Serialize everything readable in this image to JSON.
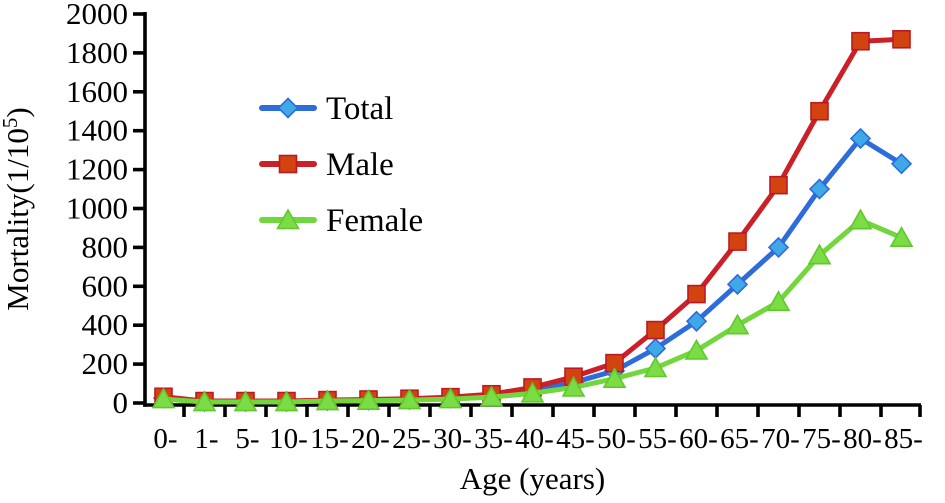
{
  "chart_data": {
    "type": "line",
    "title": "",
    "xlabel": "Age (years)",
    "ylabel": "Mortality(1/10⁵)",
    "ylim": [
      0,
      2000
    ],
    "ytick_step": 200,
    "ytick_labels": [
      "0",
      "200",
      "400",
      "600",
      "800",
      "1000",
      "1200",
      "1400",
      "1600",
      "1800",
      "2000"
    ],
    "grid": false,
    "legend_position": "upper-left-inside",
    "background": "#FFFFFF",
    "axis_color": "#000000",
    "categories": [
      "0-",
      "1-",
      "5-",
      "10-",
      "15-",
      "20-",
      "25-",
      "30-",
      "35-",
      "40-",
      "45-",
      "50-",
      "55-",
      "60-",
      "65-",
      "70-",
      "75-",
      "80-",
      "85-"
    ],
    "series": [
      {
        "name": "Total",
        "marker": "diamond",
        "line_color": "#2E6BDB",
        "marker_fill": "#3FA9E8",
        "marker_stroke": "#2E6BDB",
        "values": [
          25,
          8,
          8,
          8,
          12,
          15,
          18,
          25,
          38,
          65,
          105,
          165,
          280,
          420,
          610,
          800,
          1100,
          1360,
          1230
        ]
      },
      {
        "name": "Male",
        "marker": "square",
        "line_color": "#CB2027",
        "marker_fill": "#D2430F",
        "marker_stroke": "#BB1A24",
        "values": [
          32,
          10,
          10,
          10,
          15,
          18,
          22,
          30,
          45,
          80,
          135,
          205,
          375,
          560,
          830,
          1120,
          1500,
          1860,
          1870
        ]
      },
      {
        "name": "Female",
        "marker": "triangle",
        "line_color": "#72D73C",
        "marker_fill": "#7CDC46",
        "marker_stroke": "#5FC92E",
        "values": [
          20,
          5,
          5,
          5,
          10,
          12,
          15,
          20,
          30,
          50,
          80,
          125,
          180,
          270,
          400,
          520,
          760,
          940,
          850
        ]
      }
    ]
  }
}
